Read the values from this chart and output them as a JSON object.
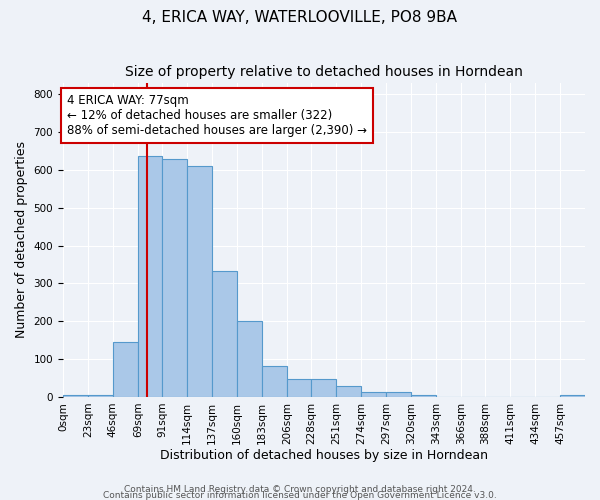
{
  "title_line1": "4, ERICA WAY, WATERLOOVILLE, PO8 9BA",
  "title_line2": "Size of property relative to detached houses in Horndean",
  "xlabel": "Distribution of detached houses by size in Horndean",
  "ylabel": "Number of detached properties",
  "bin_edges": [
    0,
    23,
    46,
    69,
    91,
    114,
    137,
    160,
    183,
    206,
    228,
    251,
    274,
    297,
    320,
    343,
    366,
    388,
    411,
    434,
    457,
    480
  ],
  "bar_heights": [
    5,
    5,
    145,
    638,
    630,
    610,
    333,
    200,
    83,
    47,
    47,
    28,
    13,
    13,
    5,
    0,
    0,
    0,
    0,
    0,
    5
  ],
  "bar_color": "#aac8e8",
  "bar_edge_color": "#5599cc",
  "ylim": [
    0,
    830
  ],
  "yticks": [
    0,
    100,
    200,
    300,
    400,
    500,
    600,
    700,
    800
  ],
  "xtick_positions": [
    0,
    23,
    46,
    69,
    91,
    114,
    137,
    160,
    183,
    206,
    228,
    251,
    274,
    297,
    320,
    343,
    366,
    388,
    411,
    434,
    457
  ],
  "xtick_labels": [
    "0sqm",
    "23sqm",
    "46sqm",
    "69sqm",
    "91sqm",
    "114sqm",
    "137sqm",
    "160sqm",
    "183sqm",
    "206sqm",
    "228sqm",
    "251sqm",
    "274sqm",
    "297sqm",
    "320sqm",
    "343sqm",
    "366sqm",
    "388sqm",
    "411sqm",
    "434sqm",
    "457sqm"
  ],
  "xlim": [
    0,
    480
  ],
  "property_size": 77,
  "red_line_color": "#cc0000",
  "annotation_text": "4 ERICA WAY: 77sqm\n← 12% of detached houses are smaller (322)\n88% of semi-detached houses are larger (2,390) →",
  "annotation_box_color": "#ffffff",
  "annotation_box_edge_color": "#cc0000",
  "footer_line1": "Contains HM Land Registry data © Crown copyright and database right 2024.",
  "footer_line2": "Contains public sector information licensed under the Open Government Licence v3.0.",
  "background_color": "#eef2f8",
  "grid_color": "#ffffff",
  "title_fontsize": 11,
  "subtitle_fontsize": 10,
  "axis_label_fontsize": 9,
  "tick_fontsize": 7.5,
  "annotation_fontsize": 8.5,
  "footer_fontsize": 6.5
}
